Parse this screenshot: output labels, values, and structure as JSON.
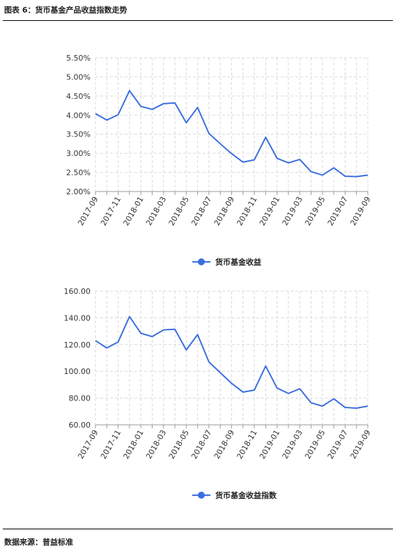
{
  "figure_title": "图表 6：货币基金产品收益指数走势",
  "source": "数据来源：普益标准",
  "colors": {
    "line": "#3b6fe0",
    "grid": "#d9d9d9",
    "axis": "#999999"
  },
  "chart_data": [
    {
      "type": "line",
      "x": [
        "2017-09",
        "2017-10",
        "2017-11",
        "2017-12",
        "2018-01",
        "2018-02",
        "2018-03",
        "2018-04",
        "2018-05",
        "2018-06",
        "2018-07",
        "2018-08",
        "2018-09",
        "2018-10",
        "2018-11",
        "2018-12",
        "2019-01",
        "2019-02",
        "2019-03",
        "2019-04",
        "2019-05",
        "2019-06",
        "2019-07",
        "2019-08",
        "2019-09"
      ],
      "xtick_labels": [
        "2017-09",
        "2017-11",
        "2018-01",
        "2018-03",
        "2018-05",
        "2018-07",
        "2018-09",
        "2018-11",
        "2019-01",
        "2019-03",
        "2019-05",
        "2019-07",
        "2019-09"
      ],
      "series": [
        {
          "name": "货币基金收益",
          "values": [
            4.04,
            3.87,
            4.01,
            4.64,
            4.23,
            4.15,
            4.3,
            4.32,
            3.8,
            4.2,
            3.52,
            3.25,
            2.99,
            2.77,
            2.83,
            3.42,
            2.87,
            2.75,
            2.84,
            2.52,
            2.43,
            2.62,
            2.4,
            2.39,
            2.43
          ]
        }
      ],
      "ylim": [
        2.0,
        5.5
      ],
      "yticks": [
        2.0,
        2.5,
        3.0,
        3.5,
        4.0,
        4.5,
        5.0,
        5.5
      ],
      "ytick_labels": [
        "2.00%",
        "2.50%",
        "3.00%",
        "3.50%",
        "4.00%",
        "4.50%",
        "5.00%",
        "5.50%"
      ],
      "grid": true,
      "legend": "bottom-center"
    },
    {
      "type": "line",
      "x": [
        "2017-09",
        "2017-10",
        "2017-11",
        "2017-12",
        "2018-01",
        "2018-02",
        "2018-03",
        "2018-04",
        "2018-05",
        "2018-06",
        "2018-07",
        "2018-08",
        "2018-09",
        "2018-10",
        "2018-11",
        "2018-12",
        "2019-01",
        "2019-02",
        "2019-03",
        "2019-04",
        "2019-05",
        "2019-06",
        "2019-07",
        "2019-08",
        "2019-09"
      ],
      "xtick_labels": [
        "2017-09",
        "2017-11",
        "2018-01",
        "2018-03",
        "2018-05",
        "2018-07",
        "2018-09",
        "2018-11",
        "2019-01",
        "2019-03",
        "2019-05",
        "2019-07",
        "2019-09"
      ],
      "series": [
        {
          "name": "货币基金收益指数",
          "values": [
            123.0,
            117.5,
            122.0,
            141.0,
            128.5,
            126.0,
            131.0,
            131.5,
            116.0,
            127.5,
            107.0,
            99.0,
            91.0,
            84.5,
            86.0,
            104.0,
            87.5,
            83.5,
            87.0,
            76.5,
            74.0,
            79.5,
            73.0,
            72.5,
            74.0
          ]
        }
      ],
      "ylim": [
        60,
        160
      ],
      "yticks": [
        60,
        80,
        100,
        120,
        140,
        160
      ],
      "ytick_labels": [
        "60.00",
        "80.00",
        "100.00",
        "120.00",
        "140.00",
        "160.00"
      ],
      "grid": true,
      "legend": "bottom-center"
    }
  ]
}
